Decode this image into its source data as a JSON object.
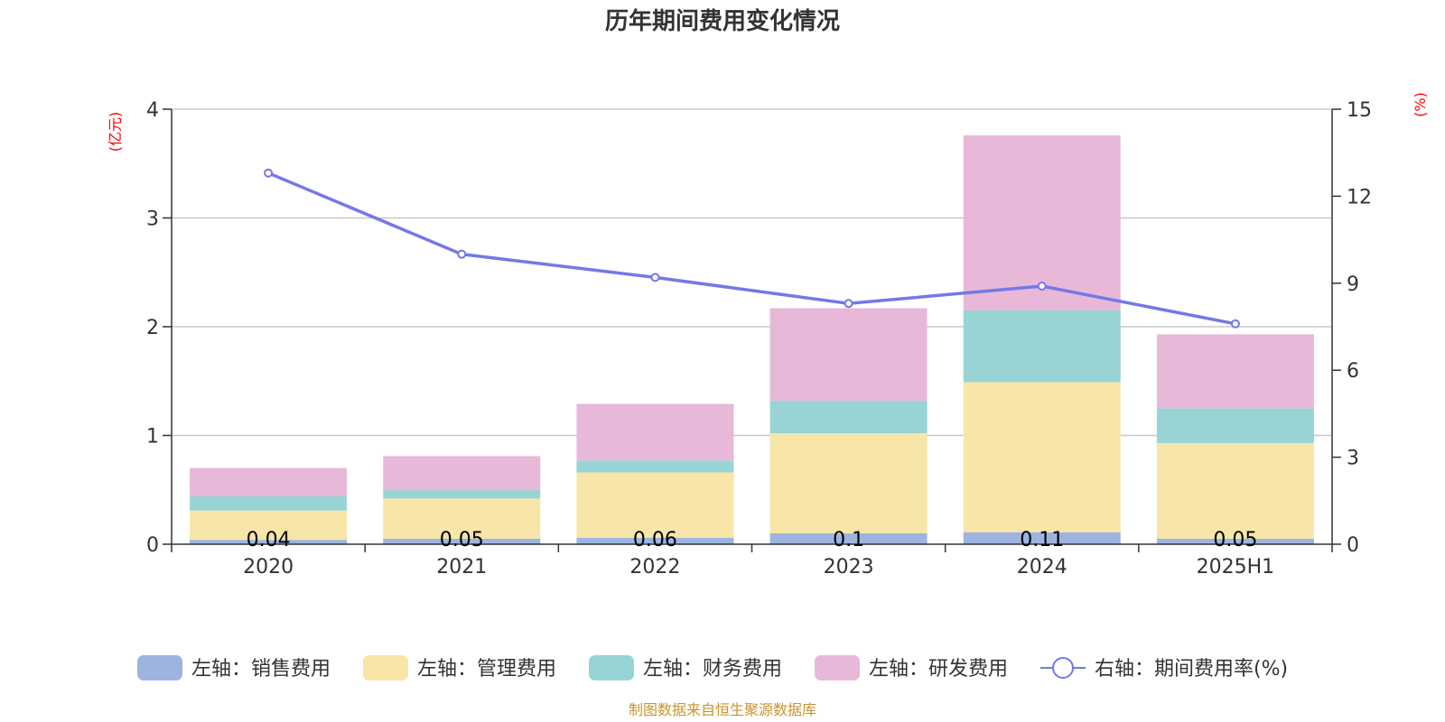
{
  "chart_data": {
    "type": "bar",
    "title": "历年期间费用变化情况",
    "categories": [
      "2020",
      "2021",
      "2022",
      "2023",
      "2024",
      "2025H1"
    ],
    "left_axis": {
      "unit": "(亿元)",
      "ylim": [
        0,
        4
      ],
      "ticks": [
        "0",
        "1",
        "2",
        "3",
        "4"
      ]
    },
    "right_axis": {
      "unit": "(%)",
      "ylim": [
        0,
        15
      ],
      "ticks": [
        "0",
        "3",
        "6",
        "9",
        "12",
        "15"
      ]
    },
    "series": [
      {
        "name": "左轴：销售费用",
        "type": "bar",
        "axis": "left",
        "color": "#9db4e0",
        "values": [
          0.04,
          0.05,
          0.06,
          0.1,
          0.11,
          0.05
        ],
        "labels": [
          "0.04",
          "0.05",
          "0.06",
          "0.1",
          "0.11",
          "0.05"
        ]
      },
      {
        "name": "左轴：管理费用",
        "type": "bar",
        "axis": "left",
        "color": "#f7e6a8",
        "values": [
          0.27,
          0.37,
          0.6,
          0.92,
          1.38,
          0.88
        ]
      },
      {
        "name": "左轴：财务费用",
        "type": "bar",
        "axis": "left",
        "color": "#98d4d4",
        "values": [
          0.13,
          0.08,
          0.11,
          0.3,
          0.66,
          0.32
        ]
      },
      {
        "name": "左轴：研发费用",
        "type": "bar",
        "axis": "left",
        "color": "#e8b8d8",
        "values": [
          0.26,
          0.31,
          0.52,
          0.85,
          1.61,
          0.68
        ]
      },
      {
        "name": "右轴：期间费用率(%)",
        "type": "line",
        "axis": "right",
        "color": "#7478e8",
        "values": [
          12.8,
          10.0,
          9.2,
          8.3,
          8.9,
          7.6
        ]
      }
    ],
    "grid": true,
    "legend_position": "bottom"
  },
  "source": "制图数据来自恒生聚源数据库"
}
